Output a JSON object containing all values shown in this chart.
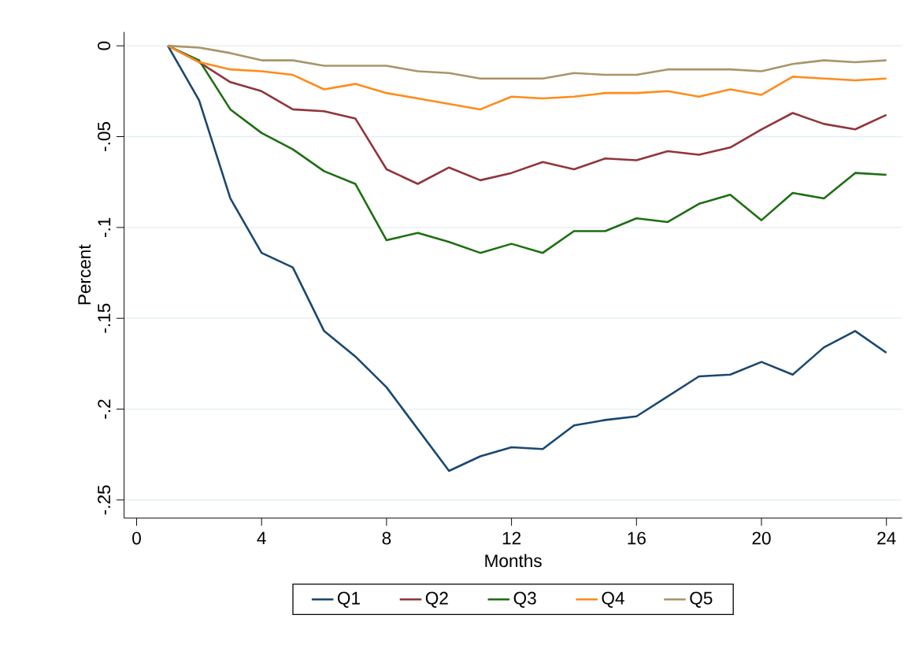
{
  "chart_data": {
    "type": "line",
    "xlabel": "Months",
    "ylabel": "Percent",
    "x": [
      1,
      2,
      3,
      4,
      5,
      6,
      7,
      8,
      9,
      10,
      11,
      12,
      13,
      14,
      15,
      16,
      17,
      18,
      19,
      20,
      21,
      22,
      23,
      24
    ],
    "series": [
      {
        "name": "Q1",
        "color": "#1a476f",
        "values": [
          0,
          -0.03,
          -0.084,
          -0.114,
          -0.122,
          -0.157,
          -0.171,
          -0.188,
          -0.211,
          -0.234,
          -0.226,
          -0.221,
          -0.222,
          -0.209,
          -0.206,
          -0.204,
          -0.193,
          -0.182,
          -0.181,
          -0.174,
          -0.181,
          -0.166,
          -0.157,
          -0.169
        ]
      },
      {
        "name": "Q2",
        "color": "#90353b",
        "values": [
          0,
          -0.009,
          -0.02,
          -0.025,
          -0.035,
          -0.036,
          -0.04,
          -0.068,
          -0.076,
          -0.067,
          -0.074,
          -0.07,
          -0.064,
          -0.068,
          -0.062,
          -0.063,
          -0.058,
          -0.06,
          -0.056,
          -0.046,
          -0.037,
          -0.043,
          -0.046,
          -0.038
        ]
      },
      {
        "name": "Q3",
        "color": "#1e6e14",
        "values": [
          0,
          -0.008,
          -0.035,
          -0.048,
          -0.057,
          -0.069,
          -0.076,
          -0.107,
          -0.103,
          -0.108,
          -0.114,
          -0.109,
          -0.114,
          -0.102,
          -0.102,
          -0.095,
          -0.097,
          -0.087,
          -0.082,
          -0.096,
          -0.081,
          -0.084,
          -0.07,
          -0.071
        ]
      },
      {
        "name": "Q4",
        "color": "#ff8c1a",
        "values": [
          0,
          -0.009,
          -0.013,
          -0.014,
          -0.016,
          -0.024,
          -0.021,
          -0.026,
          -0.029,
          -0.032,
          -0.035,
          -0.028,
          -0.029,
          -0.028,
          -0.026,
          -0.026,
          -0.025,
          -0.028,
          -0.024,
          -0.027,
          -0.017,
          -0.018,
          -0.019,
          -0.018
        ]
      },
      {
        "name": "Q5",
        "color": "#a8956a",
        "values": [
          0,
          -0.001,
          -0.004,
          -0.008,
          -0.008,
          -0.011,
          -0.011,
          -0.011,
          -0.014,
          -0.015,
          -0.018,
          -0.018,
          -0.018,
          -0.015,
          -0.016,
          -0.016,
          -0.013,
          -0.013,
          -0.013,
          -0.014,
          -0.01,
          -0.008,
          -0.009,
          -0.008
        ]
      }
    ],
    "xlim": [
      -0.4,
      24.5
    ],
    "ylim": [
      -0.26,
      0.0076
    ],
    "xticks": [
      0,
      4,
      8,
      12,
      16,
      20,
      24
    ],
    "yticks": [
      0,
      {
        "value": -0.05,
        "label": "-.05"
      },
      {
        "value": -0.1,
        "label": "-.1"
      },
      {
        "value": -0.15,
        "label": "-.15"
      },
      {
        "value": -0.2,
        "label": "-.2"
      },
      {
        "value": -0.25,
        "label": "-.25"
      }
    ],
    "grid": "y",
    "legend": "bottom",
    "marker": "none",
    "line_style": "solid"
  }
}
